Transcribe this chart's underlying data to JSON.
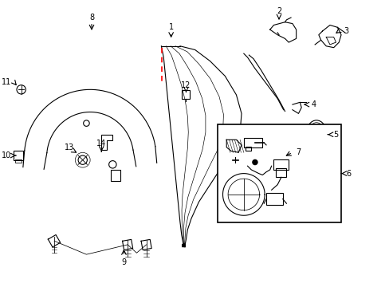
{
  "bg_color": "#ffffff",
  "line_color": "#000000",
  "red_dashed_color": "#ff0000",
  "figsize": [
    4.89,
    3.6
  ],
  "dpi": 100,
  "xlim": [
    0,
    5.0
  ],
  "ylim": [
    0,
    3.8
  ]
}
